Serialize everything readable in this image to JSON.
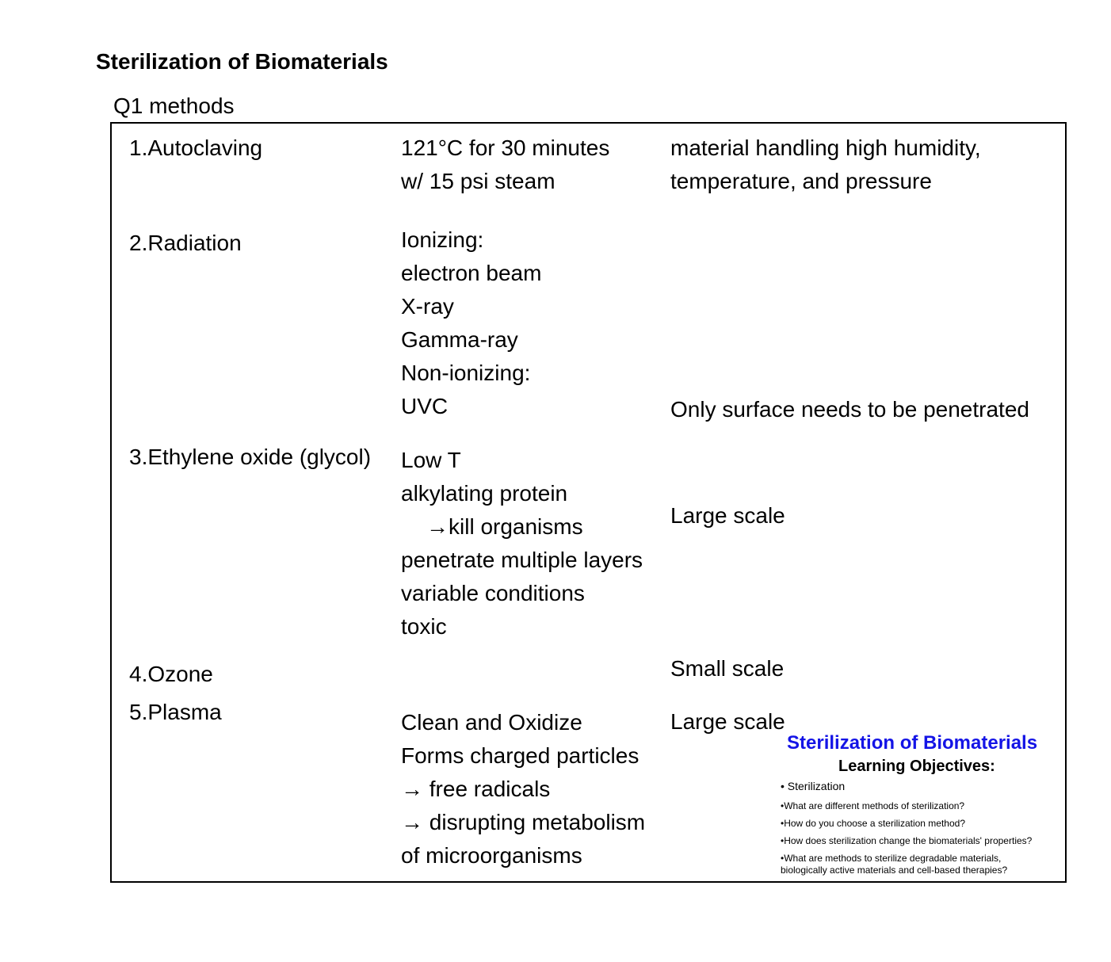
{
  "title": "Sterilization of Biomaterials",
  "subtitle": "Q1  methods",
  "rows": {
    "autoclaving": {
      "method": "1.Autoclaving",
      "details": [
        "121°C for 30 minutes",
        "w/ 15 psi steam"
      ],
      "notes": [
        "material handling high humidity,",
        "temperature, and pressure"
      ]
    },
    "radiation": {
      "method": "2.Radiation",
      "details": [
        "Ionizing:",
        "electron beam",
        "X-ray",
        "Gamma-ray",
        "Non-ionizing:",
        "UVC"
      ],
      "note": "Only surface needs to be penetrated"
    },
    "ethylene_oxide": {
      "method": "3.Ethylene oxide (glycol)",
      "details": [
        "Low T",
        "alkylating protein",
        "→kill organisms",
        "penetrate multiple layers",
        "variable conditions",
        "toxic"
      ],
      "note": "Large scale"
    },
    "ozone": {
      "method": "4.Ozone",
      "note": "Small scale"
    },
    "plasma": {
      "method": "5.Plasma",
      "details": [
        "Clean and Oxidize",
        "Forms charged particles",
        "→ free radicals",
        "→ disrupting metabolism",
        "of microorganisms"
      ],
      "note": "Large scale"
    }
  },
  "inset": {
    "title": "Sterilization of Biomaterials",
    "subtitle": "Learning Objectives:",
    "items": [
      "• Sterilization",
      "•What are different methods of sterilization?",
      "•How do you choose a sterilization method?",
      "•How does sterilization change the biomaterials' properties?",
      "•What are methods to sterilize degradable materials,",
      "biologically active materials and cell-based therapies?"
    ],
    "title_color": "#1414e6"
  }
}
